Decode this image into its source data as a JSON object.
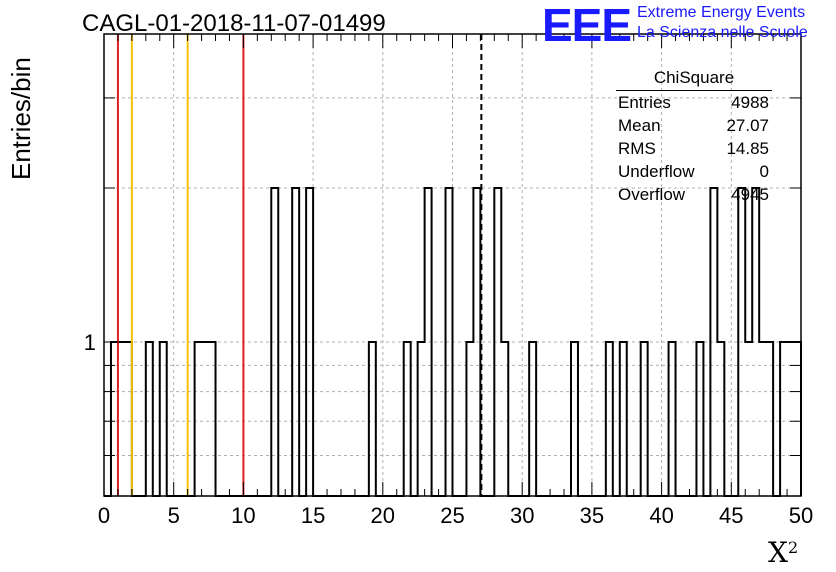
{
  "header": {
    "run_title": "CAGL-01-2018-11-07-01499",
    "logo_text": "EEE",
    "logo_line1": "Extreme Energy Events",
    "logo_line2": "La Scienza nelle Scuole"
  },
  "stats_box": {
    "title": "ChiSquare",
    "rows": [
      {
        "label": "Entries",
        "value": "4988"
      },
      {
        "label": "Mean",
        "value": "27.07"
      },
      {
        "label": "RMS",
        "value": "14.85"
      },
      {
        "label": "Underflow",
        "value": "0"
      },
      {
        "label": "Overflow",
        "value": "4945"
      }
    ]
  },
  "chart_data": {
    "type": "bar",
    "histogram": "step",
    "title": "CAGL-01-2018-11-07-01499",
    "xlabel": "X²",
    "ylabel": "Entries/bin",
    "xlim": [
      0,
      50
    ],
    "ylim": [
      0.5,
      4
    ],
    "yscale": "log",
    "x_ticks": [
      0,
      5,
      10,
      15,
      20,
      25,
      30,
      35,
      40,
      45,
      50
    ],
    "y_tick_labels": [
      {
        "value": 1,
        "label": "1"
      }
    ],
    "grid": true,
    "bin_width": 0.5,
    "bins": [
      {
        "x": 0.5,
        "count": 1
      },
      {
        "x": 1.0,
        "count": 1
      },
      {
        "x": 1.5,
        "count": 1
      },
      {
        "x": 3.0,
        "count": 1
      },
      {
        "x": 4.0,
        "count": 1
      },
      {
        "x": 6.5,
        "count": 1
      },
      {
        "x": 7.0,
        "count": 1
      },
      {
        "x": 7.5,
        "count": 1
      },
      {
        "x": 12.0,
        "count": 2
      },
      {
        "x": 13.5,
        "count": 2
      },
      {
        "x": 14.5,
        "count": 2
      },
      {
        "x": 19.0,
        "count": 1
      },
      {
        "x": 21.5,
        "count": 1
      },
      {
        "x": 22.5,
        "count": 1
      },
      {
        "x": 23.0,
        "count": 2
      },
      {
        "x": 24.5,
        "count": 2
      },
      {
        "x": 26.0,
        "count": 1
      },
      {
        "x": 26.5,
        "count": 2
      },
      {
        "x": 28.0,
        "count": 2
      },
      {
        "x": 28.5,
        "count": 1
      },
      {
        "x": 30.5,
        "count": 1
      },
      {
        "x": 33.5,
        "count": 1
      },
      {
        "x": 36.0,
        "count": 1
      },
      {
        "x": 37.0,
        "count": 1
      },
      {
        "x": 38.5,
        "count": 1
      },
      {
        "x": 40.5,
        "count": 1
      },
      {
        "x": 42.5,
        "count": 1
      },
      {
        "x": 43.5,
        "count": 2
      },
      {
        "x": 44.0,
        "count": 1
      },
      {
        "x": 45.5,
        "count": 2
      },
      {
        "x": 46.0,
        "count": 1
      },
      {
        "x": 46.5,
        "count": 2
      },
      {
        "x": 47.0,
        "count": 1
      },
      {
        "x": 47.5,
        "count": 1
      },
      {
        "x": 48.5,
        "count": 1
      },
      {
        "x": 49.0,
        "count": 1
      },
      {
        "x": 49.5,
        "count": 1
      }
    ],
    "vertical_lines": [
      {
        "x": 1,
        "color": "#e02020",
        "style": "solid"
      },
      {
        "x": 2,
        "color": "#f2c200",
        "style": "solid"
      },
      {
        "x": 6,
        "color": "#f2c200",
        "style": "solid"
      },
      {
        "x": 10,
        "color": "#e02020",
        "style": "solid"
      },
      {
        "x": 27.07,
        "color": "#000000",
        "style": "dashed"
      }
    ]
  }
}
